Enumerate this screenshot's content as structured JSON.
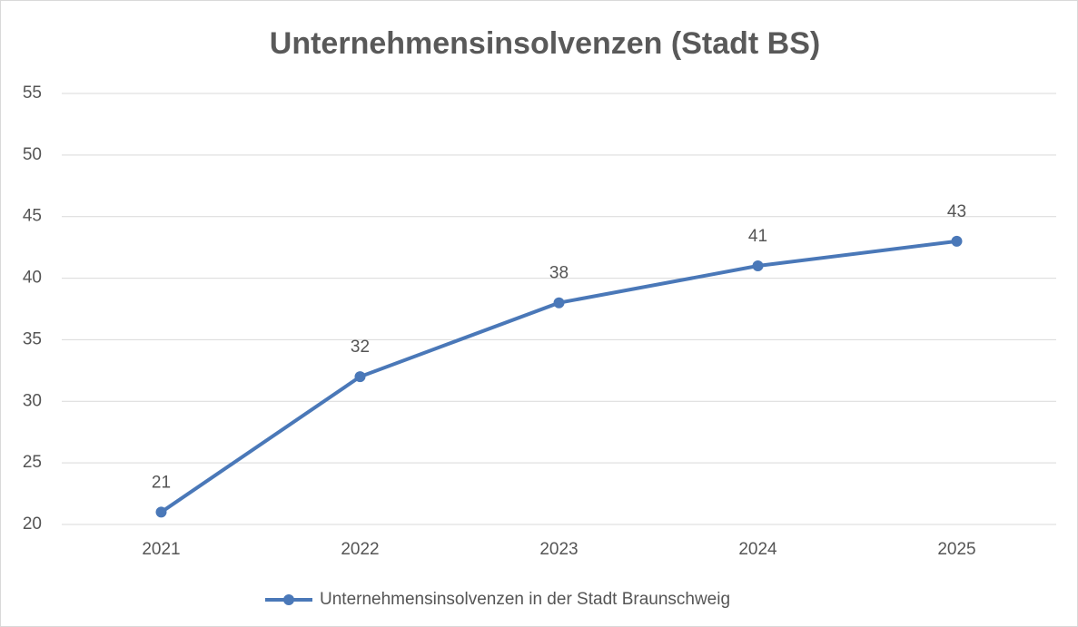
{
  "chart_data": {
    "type": "line",
    "title": "Unternehmensinsolvenzen (Stadt BS)",
    "categories": [
      "2021",
      "2022",
      "2023",
      "2024",
      "2025"
    ],
    "series": [
      {
        "name": "Unternehmensinsolvenzen in der Stadt Braunschweig",
        "color": "#4a78b8",
        "values": [
          21,
          32,
          38,
          41,
          43
        ]
      }
    ],
    "ylim": [
      20,
      55
    ],
    "yticks": [
      20,
      25,
      30,
      35,
      40,
      45,
      50,
      55
    ],
    "grid": true,
    "legend": "bottom",
    "data_labels": true
  }
}
